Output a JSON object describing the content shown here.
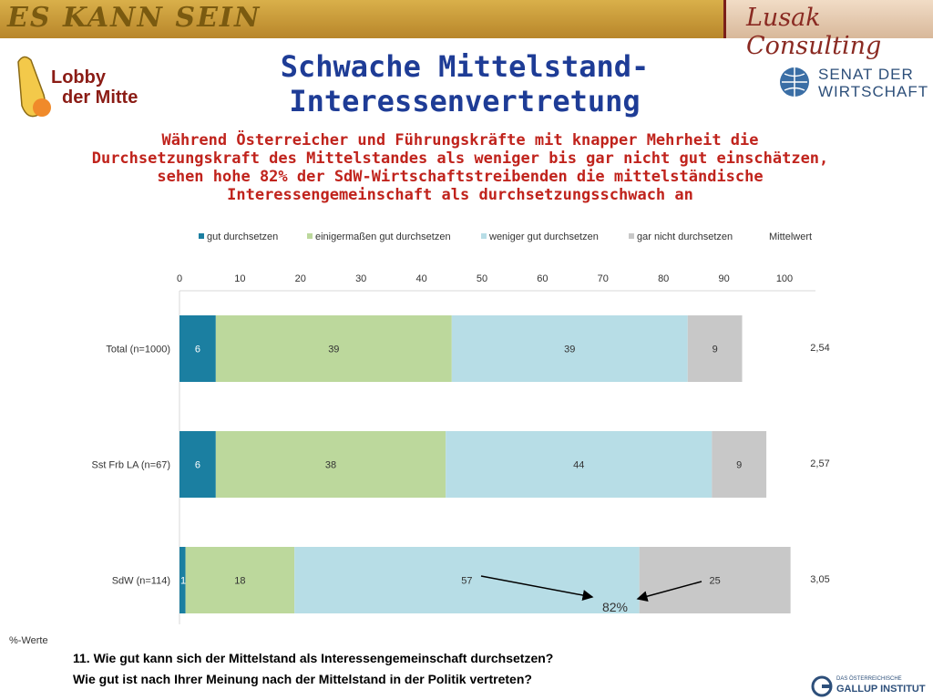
{
  "header": {
    "banner_left": "ES KANN SEIN",
    "banner_right": "Lusak Consulting",
    "lobby_line1": "Lobby",
    "lobby_line2": "der Mitte",
    "senat_line1": "SENAT DER",
    "senat_line2": "WIRTSCHAFT"
  },
  "title": "Schwache Mittelstand-Interessenvertretung",
  "subtitle": "Während Österreicher und Führungskräfte mit knapper Mehrheit die Durchsetzungskraft des Mittelstandes als weniger bis gar nicht gut einschätzen, sehen hohe 82% der SdW-Wirtschaftstreibenden die mittelständische Interessengemeinschaft als durchsetzungsschwach an",
  "colors": {
    "title": "#1e3c96",
    "subtitle": "#c0231c",
    "gut": "#1b7fa1",
    "einigermassen": "#bcd89c",
    "weniger": "#b7dde6",
    "gar_nicht": "#c8c8c8"
  },
  "chart_data": {
    "type": "bar",
    "orientation": "horizontal",
    "stacked": true,
    "categories": [
      "Total (n=1000)",
      "Sst Frb LA (n=67)",
      "SdW (n=114)"
    ],
    "series": [
      {
        "name": "gut durchsetzen",
        "values": [
          6,
          6,
          1
        ]
      },
      {
        "name": "einigermaßen gut durchsetzen",
        "values": [
          39,
          38,
          18
        ]
      },
      {
        "name": "weniger gut durchsetzen",
        "values": [
          39,
          44,
          57
        ]
      },
      {
        "name": "gar nicht durchsetzen",
        "values": [
          9,
          9,
          25
        ]
      }
    ],
    "mittelwert_label": "Mittelwert",
    "mittelwert": [
      "2,54",
      "2,57",
      "3,05"
    ],
    "xlim": [
      0,
      100
    ],
    "xticks": [
      0,
      10,
      20,
      30,
      40,
      50,
      60,
      70,
      80,
      90,
      100
    ],
    "legend_position": "top",
    "annotation": "82%"
  },
  "footnote": "%-Werte",
  "question1": "11. Wie gut kann sich der Mittelstand als Interessengemeinschaft durchsetzen?",
  "question2": "Wie gut ist nach Ihrer Meinung nach der Mittelstand in der Politik vertreten?",
  "footer": {
    "gallup_small": "DAS ÖSTERREICHISCHE",
    "gallup_big": "GALLUP INSTITUT"
  }
}
